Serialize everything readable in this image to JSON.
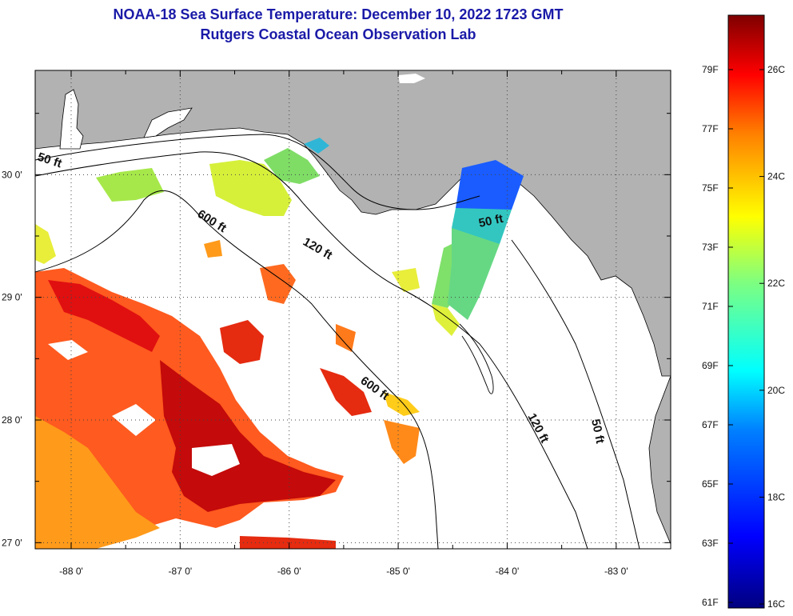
{
  "title": {
    "line1": "NOAA-18 Sea Surface Temperature:  December 10, 2022 1723 GMT",
    "line2": "Rutgers Coastal Ocean Observation Lab"
  },
  "map": {
    "extent": {
      "lon_min": -88.33,
      "lon_max": -82.5,
      "lat_min": 26.95,
      "lat_max": 30.85
    },
    "lat_ticks": [
      {
        "value": 30,
        "label": "30 0'"
      },
      {
        "value": 29,
        "label": "29 0'"
      },
      {
        "value": 28,
        "label": "28 0'"
      },
      {
        "value": 27,
        "label": "27 0'"
      }
    ],
    "lon_ticks": [
      {
        "value": -88,
        "label": "-88 0'"
      },
      {
        "value": -87,
        "label": "-87 0'"
      },
      {
        "value": -86,
        "label": "-86 0'"
      },
      {
        "value": -85,
        "label": "-85 0'"
      },
      {
        "value": -84,
        "label": "-84 0'"
      },
      {
        "value": -83,
        "label": "-83 0'"
      }
    ],
    "contour_labels": [
      {
        "text": "50 ft"
      },
      {
        "text": "600 ft"
      },
      {
        "text": "120 ft"
      },
      {
        "text": "50 ft"
      },
      {
        "text": "600 ft"
      },
      {
        "text": "120 ft"
      },
      {
        "text": "50 ft"
      }
    ],
    "colors": {
      "land": "#b2b2b2",
      "water_nodata": "#ffffff",
      "coast": "#000000"
    }
  },
  "colorbar": {
    "fahrenheit_labels": [
      "79F",
      "77F",
      "75F",
      "73F",
      "71F",
      "69F",
      "67F",
      "65F",
      "63F",
      "61F"
    ],
    "celsius_labels": [
      "26C",
      "24C",
      "22C",
      "20C",
      "18C",
      "16C"
    ],
    "range_c": [
      16,
      27
    ]
  }
}
